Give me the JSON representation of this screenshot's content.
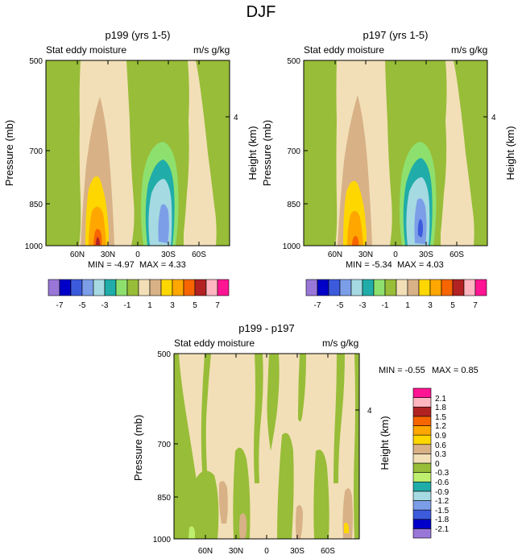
{
  "figure": {
    "title": "DJF"
  },
  "palettes": {
    "fields": [
      "#9977d8",
      "#0000c8",
      "#3c5bdc",
      "#7c9ee8",
      "#a6dae2",
      "#20ada9",
      "#8ee06e",
      "#98bd38",
      "#f2dfb7",
      "#d8b187",
      "#ffd700",
      "#ffa700",
      "#f76500",
      "#b22222",
      "#ffb6c1",
      "#ff1493"
    ],
    "diff": [
      "#9977d8",
      "#0000c8",
      "#3c5bdc",
      "#7c9ee8",
      "#a6dae2",
      "#20ada9",
      "#bfef6e",
      "#98bd38",
      "#f2dfb7",
      "#d8b187",
      "#ffd700",
      "#ffa700",
      "#f76500",
      "#b22222",
      "#ffb6c1",
      "#ff1493"
    ]
  },
  "chart_data": [
    {
      "type": "contour",
      "title": "p199 (yrs 1-5)",
      "left_label": "Stat eddy moisture",
      "right_label": "m/s g/kg",
      "ylabel": "Pressure (mb)",
      "right_axis_label": "Height (km)",
      "right_tick_label": "4",
      "x_ticks": [
        "60N",
        "30N",
        "0",
        "30S",
        "60S"
      ],
      "y_ticks": [
        "500",
        "700",
        "850",
        "1000"
      ],
      "min_label": "MIN = -4.97",
      "max_label": "MAX = 4.33",
      "colorbar_levels": [
        "-7",
        "-5",
        "-3",
        "-1",
        "1",
        "3",
        "5",
        "7"
      ]
    },
    {
      "type": "contour",
      "title": "p197 (yrs 1-5)",
      "left_label": "Stat eddy moisture",
      "right_label": "m/s g/kg",
      "ylabel": "Pressure (mb)",
      "right_axis_label": "Height (km)",
      "right_tick_label": "4",
      "x_ticks": [
        "60N",
        "30N",
        "0",
        "30S",
        "60S"
      ],
      "y_ticks": [
        "500",
        "700",
        "850",
        "1000"
      ],
      "min_label": "MIN = -5.34",
      "max_label": "MAX = 4.03",
      "colorbar_levels": [
        "-7",
        "-5",
        "-3",
        "-1",
        "1",
        "3",
        "5",
        "7"
      ]
    },
    {
      "type": "contour",
      "title": "p199 - p197",
      "left_label": "Stat eddy moisture",
      "right_label": "m/s g/kg",
      "ylabel": "Pressure (mb)",
      "right_axis_label": "Height (km)",
      "right_tick_label": "4",
      "x_ticks": [
        "60N",
        "30N",
        "0",
        "30S",
        "60S"
      ],
      "y_ticks": [
        "500",
        "700",
        "850",
        "1000"
      ],
      "min_label": "MIN = -0.55",
      "max_label": "MAX = 0.85",
      "colorbar_levels": [
        "2.1",
        "1.8",
        "1.5",
        "1.2",
        "0.9",
        "0.6",
        "0.3",
        "0",
        "-0.3",
        "-0.6",
        "-0.9",
        "-1.2",
        "-1.5",
        "-1.8",
        "-2.1"
      ]
    }
  ]
}
